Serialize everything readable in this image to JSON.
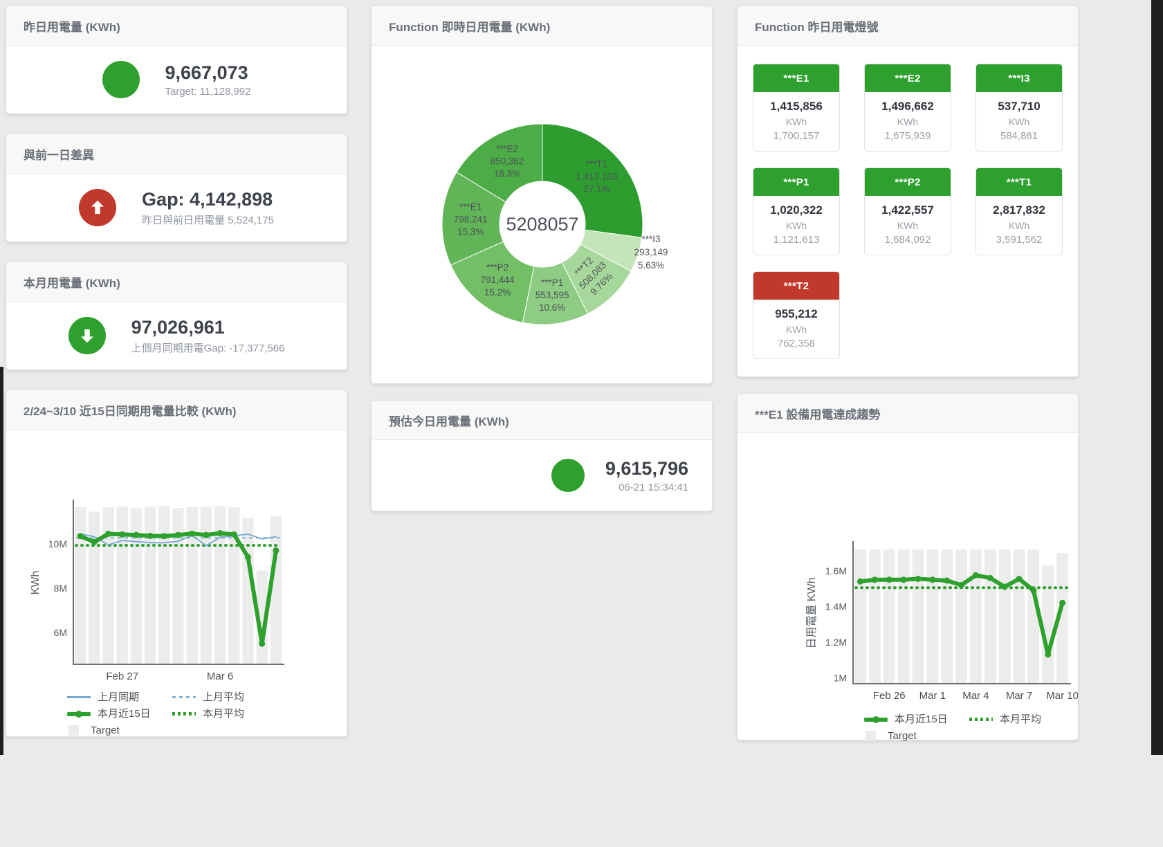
{
  "colors": {
    "green": "#2da02d",
    "red": "#c0392b",
    "blue_line": "#74a7ce",
    "blue_dash": "#85b4d6",
    "bar_gray": "#ececec"
  },
  "cards": {
    "yesterday": {
      "title": "昨日用電量 (KWh)",
      "value": "9,667,073",
      "sub": "Target: 11,128,992"
    },
    "gap": {
      "title": "與前一日差異",
      "value": "Gap: 4,142,898",
      "sub": "昨日與前日用電量 5,524,175"
    },
    "month": {
      "title": "本月用電量 (KWh)",
      "value": "97,026,961",
      "sub": "上個月同期用電Gap: -17,377,566"
    },
    "estimate": {
      "title": "預估今日用電量 (KWh)",
      "value": "9,615,796",
      "sub": "06-21 15:34:41"
    },
    "lights": {
      "title": "Function 昨日用電燈號",
      "tiles": [
        {
          "name": "***E1",
          "value": "1,415,856",
          "unit": "KWh",
          "target": "1,700,157",
          "status_color": "#2da02d"
        },
        {
          "name": "***E2",
          "value": "1,496,662",
          "unit": "KWh",
          "target": "1,675,939",
          "status_color": "#2da02d"
        },
        {
          "name": "***I3",
          "value": "537,710",
          "unit": "KWh",
          "target": "584,861",
          "status_color": "#2da02d"
        },
        {
          "name": "***P1",
          "value": "1,020,322",
          "unit": "KWh",
          "target": "1,121,613",
          "status_color": "#2da02d"
        },
        {
          "name": "***P2",
          "value": "1,422,557",
          "unit": "KWh",
          "target": "1,684,092",
          "status_color": "#2da02d"
        },
        {
          "name": "***T1",
          "value": "2,817,832",
          "unit": "KWh",
          "target": "3,591,562",
          "status_color": "#2da02d"
        },
        {
          "name": "***T2",
          "value": "955,212",
          "unit": "KWh",
          "target": "762,358",
          "status_color": "#c0392b"
        }
      ]
    }
  },
  "chart_data": [
    {
      "type": "pie",
      "title": "Function 即時日用電量 (KWh)",
      "center_label": "5208057",
      "legend_position": "none",
      "segments": [
        {
          "name": "***T1",
          "value": 1413183,
          "display": "1,413,183",
          "pct": "27.1%",
          "color": "#2e9d30",
          "rotate": 0
        },
        {
          "name": "***I3",
          "value": 293149,
          "display": "293,149",
          "pct": "5.63%",
          "color": "#c3e5b9",
          "rotate": 0,
          "label_outside": true
        },
        {
          "name": "***T2",
          "value": 508083,
          "display": "508,083",
          "pct": "9.76%",
          "color": "#a7d89b",
          "rotate": -45
        },
        {
          "name": "***P1",
          "value": 553595,
          "display": "553,595",
          "pct": "10.6%",
          "color": "#8fcc83",
          "rotate": 0
        },
        {
          "name": "***P2",
          "value": 791444,
          "display": "791,444",
          "pct": "15.2%",
          "color": "#72bf66",
          "rotate": 0
        },
        {
          "name": "***E1",
          "value": 798241,
          "display": "798,241",
          "pct": "15.3%",
          "color": "#60b557",
          "rotate": 0
        },
        {
          "name": "***E2",
          "value": 850362,
          "display": "850,362",
          "pct": "16.3%",
          "color": "#4cac45",
          "rotate": 0
        }
      ]
    },
    {
      "type": "line+bar",
      "title": "2/24~3/10 近15日同期用電量比較 (KWh)",
      "ylabel": "KWh",
      "unit": "M KWh",
      "ylim": [
        4.6,
        11.9
      ],
      "yticks": [
        {
          "v": 6,
          "t": "6M"
        },
        {
          "v": 8,
          "t": "8M"
        },
        {
          "v": 10,
          "t": "10M"
        }
      ],
      "xticks": [
        {
          "i": 3,
          "t": "Feb 27"
        },
        {
          "i": 10,
          "t": "Mar 6"
        }
      ],
      "target_bars": [
        11.65,
        11.45,
        11.65,
        11.68,
        11.6,
        11.68,
        11.7,
        11.62,
        11.65,
        11.68,
        11.7,
        11.65,
        11.15,
        8.8,
        11.25
      ],
      "series": [
        {
          "name": "上月同期",
          "style": "line-blue",
          "color": "#74a7ce",
          "width": 1.8,
          "values": [
            10.45,
            10.32,
            9.95,
            10.15,
            10.1,
            10.05,
            10.05,
            10.12,
            10.38,
            9.92,
            10.3,
            10.36,
            10.44,
            10.22,
            10.32
          ]
        },
        {
          "name": "本月近15日",
          "style": "line-green",
          "color": "#2da02d",
          "width": 6,
          "dots": 4.5,
          "values": [
            10.35,
            10.08,
            10.45,
            10.42,
            10.4,
            10.36,
            10.35,
            10.4,
            10.46,
            10.4,
            10.48,
            10.42,
            9.4,
            5.5,
            9.7
          ]
        }
      ],
      "averages": [
        {
          "name": "上月平均",
          "style": "dash-blue",
          "color": "#85b4d6",
          "v": 10.27,
          "dash": "5 5",
          "width": 2
        },
        {
          "name": "本月平均",
          "style": "dot-green",
          "color": "#2da02d",
          "v": 9.93,
          "dash": "1 7",
          "width": 4,
          "round": true
        }
      ],
      "bar_name": "Target",
      "legend": [
        {
          "style": "line-blue",
          "label": "上月同期"
        },
        {
          "style": "dash-blue",
          "label": "上月平均"
        },
        {
          "style": "line-green",
          "label": "本月近15日"
        },
        {
          "style": "dot-green",
          "label": "本月平均"
        },
        {
          "style": "sq",
          "label": "Target"
        }
      ]
    },
    {
      "type": "line+bar",
      "title": "***E1 設備用電達成趨勢",
      "ylabel": "日用電量 KWh",
      "unit": "M KWh",
      "ylim": [
        0.97,
        1.755
      ],
      "yticks": [
        {
          "v": 1,
          "t": "1M"
        },
        {
          "v": 1.2,
          "t": "1.2M"
        },
        {
          "v": 1.4,
          "t": "1.4M"
        },
        {
          "v": 1.6,
          "t": "1.6M"
        }
      ],
      "xticks": [
        {
          "i": 2,
          "t": "Feb 26"
        },
        {
          "i": 5,
          "t": "Mar 1"
        },
        {
          "i": 8,
          "t": "Mar 4"
        },
        {
          "i": 11,
          "t": "Mar 7"
        },
        {
          "i": 14,
          "t": "Mar 10"
        }
      ],
      "target_bars": [
        1.72,
        1.72,
        1.72,
        1.72,
        1.72,
        1.72,
        1.72,
        1.72,
        1.72,
        1.72,
        1.72,
        1.72,
        1.72,
        1.63,
        1.7
      ],
      "series": [
        {
          "name": "本月近15日",
          "style": "line-green",
          "color": "#2da02d",
          "width": 6,
          "dots": 4.5,
          "values": [
            1.54,
            1.55,
            1.55,
            1.55,
            1.555,
            1.55,
            1.545,
            1.52,
            1.575,
            1.56,
            1.51,
            1.555,
            1.49,
            1.13,
            1.42
          ]
        }
      ],
      "averages": [
        {
          "name": "本月平均",
          "style": "dot-green",
          "color": "#2da02d",
          "v": 1.505,
          "dash": "1 7",
          "width": 4,
          "round": true
        }
      ],
      "bar_name": "Target",
      "legend": [
        {
          "style": "line-green",
          "label": "本月近15日"
        },
        {
          "style": "dot-green",
          "label": "本月平均"
        },
        {
          "style": "sq",
          "label": "Target"
        }
      ]
    }
  ]
}
